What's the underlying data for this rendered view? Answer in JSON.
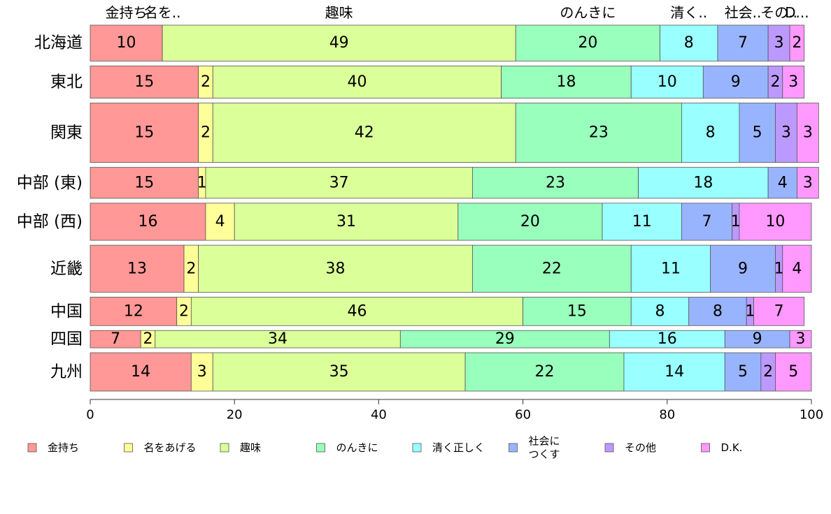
{
  "chart_data": {
    "type": "bar",
    "orientation": "horizontal",
    "stacked": true,
    "variable_width": true,
    "categories": [
      "北海道",
      "東北",
      "関東",
      "中部 (東)",
      "中部 (西)",
      "近畿",
      "中国",
      "四国",
      "九州"
    ],
    "series": [
      {
        "name": "金持ち",
        "color": "#ff9896",
        "values": [
          10,
          15,
          15,
          15,
          16,
          13,
          12,
          7,
          14
        ]
      },
      {
        "name": "名をあげる",
        "color": "#ffff99",
        "values": [
          0,
          2,
          2,
          1,
          4,
          2,
          2,
          2,
          3
        ]
      },
      {
        "name": "趣味",
        "color": "#dbff99",
        "values": [
          49,
          40,
          42,
          37,
          31,
          38,
          46,
          34,
          35
        ]
      },
      {
        "name": "のんきに",
        "color": "#99ffbc",
        "values": [
          20,
          18,
          23,
          23,
          20,
          22,
          15,
          29,
          22
        ]
      },
      {
        "name": "清く正しく",
        "color": "#99ffff",
        "values": [
          8,
          10,
          8,
          18,
          11,
          11,
          8,
          16,
          14
        ]
      },
      {
        "name": "社会につくす",
        "color": "#99b4ff",
        "values": [
          7,
          9,
          5,
          4,
          7,
          9,
          8,
          9,
          5
        ]
      },
      {
        "name": "その他",
        "color": "#bc99ff",
        "values": [
          3,
          2,
          3,
          0,
          1,
          1,
          1,
          0,
          2
        ]
      },
      {
        "name": "D.K.",
        "color": "#ff99ff",
        "values": [
          2,
          3,
          3,
          3,
          10,
          4,
          7,
          3,
          5
        ]
      }
    ],
    "row_weights": [
      2.9,
      2.6,
      4.8,
      2.5,
      3.0,
      3.8,
      2.3,
      1.4,
      3.1
    ],
    "top_labels": [
      "金持ち",
      "名を..",
      "趣味",
      "のんきに",
      "清く..",
      "社会..",
      "その..",
      "D..."
    ],
    "xlim": [
      0,
      100
    ],
    "xticks": [
      0,
      20,
      40,
      60,
      80,
      100
    ],
    "grid": false,
    "legend_position": "bottom",
    "legend_labels": [
      "金持ち",
      "名をあげる",
      "趣味",
      "のんきに",
      "清く正しく",
      "社会に\nつくす",
      "その他",
      "D.K."
    ]
  }
}
